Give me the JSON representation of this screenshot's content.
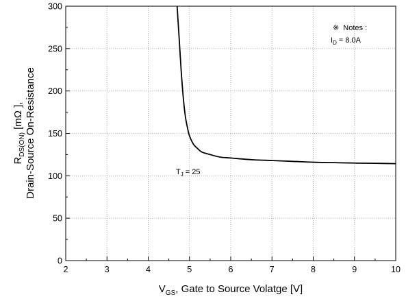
{
  "chart_data": {
    "type": "line",
    "title": "",
    "xlabel": {
      "main": "V",
      "sub": "GS",
      "rest": ", Gate to Source Volatge [V]"
    },
    "ylabel": {
      "line1": {
        "main": "R",
        "sub": "DS(ON)",
        "rest": " [mΩ  ],"
      },
      "line2": "Drain-Source On-Resistance"
    },
    "xlim": [
      2,
      10
    ],
    "ylim": [
      0,
      300
    ],
    "x_ticks": [
      2,
      3,
      4,
      5,
      6,
      7,
      8,
      9,
      10
    ],
    "y_ticks": [
      0,
      50,
      100,
      150,
      200,
      250,
      300
    ],
    "x_minor_step": 0.5,
    "y_minor_step": 25,
    "grid": "dotted",
    "series": [
      {
        "name": "",
        "color": "#000000",
        "x": [
          4.7,
          4.75,
          4.8,
          4.85,
          4.9,
          4.95,
          5.0,
          5.1,
          5.2,
          5.3,
          5.5,
          5.75,
          6.0,
          6.5,
          7.0,
          7.5,
          8.0,
          8.5,
          9.0,
          9.5,
          10.0
        ],
        "y": [
          300,
          262,
          223,
          192,
          170,
          157,
          147,
          137,
          132,
          128,
          125,
          122,
          121,
          119,
          118,
          117,
          116,
          115.5,
          115,
          114.7,
          114.3
        ]
      }
    ],
    "annotations": {
      "notes_symbol": "※",
      "notes_label": "Notes :",
      "notes_condition": {
        "main": "I",
        "sub": "D",
        "rest": " = 8.0A"
      },
      "temperature": {
        "main": "T",
        "sub": "J",
        "rest": " = 25"
      }
    }
  }
}
